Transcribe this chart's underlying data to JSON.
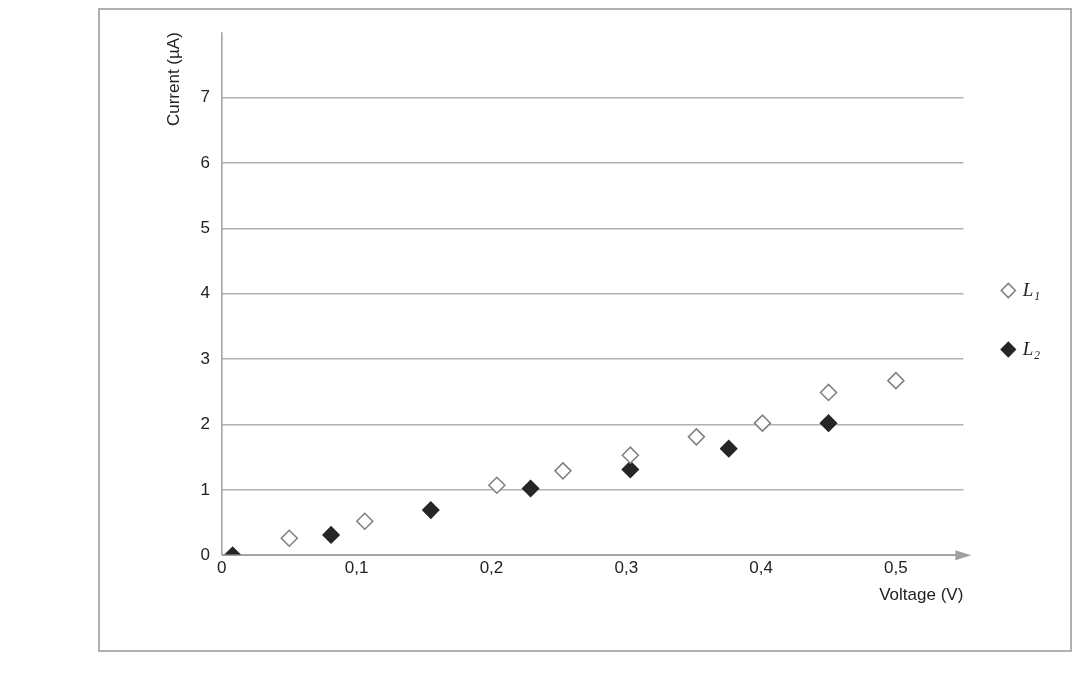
{
  "chart_data": {
    "type": "scatter",
    "xlabel": "Voltage (V)",
    "ylabel": "Current (µA)",
    "xlim": [
      0,
      0.55
    ],
    "ylim": [
      0,
      8
    ],
    "xticks": [
      0,
      {
        "value": 0.1,
        "label": "0,1"
      },
      {
        "value": 0.2,
        "label": "0,2"
      },
      {
        "value": 0.3,
        "label": "0,3"
      },
      {
        "value": 0.4,
        "label": "0,4"
      },
      {
        "value": 0.5,
        "label": "0,5"
      }
    ],
    "yticks": [
      0,
      1,
      2,
      3,
      4,
      5,
      6,
      7
    ],
    "grid": "y",
    "legend": "right",
    "marker": "diamond",
    "series": [
      {
        "name": "L₁",
        "color": "#7f7f7f",
        "x": [
          0.05,
          0.106,
          0.204,
          0.253,
          0.303,
          0.352,
          0.401,
          0.45,
          0.5
        ],
        "values": [
          0.26,
          0.52,
          1.07,
          1.29,
          1.53,
          1.81,
          2.02,
          2.49,
          2.67
        ]
      },
      {
        "name": "L₂",
        "color": "#262626",
        "x": [
          0.008,
          0.081,
          0.155,
          0.229,
          0.303,
          0.376,
          0.45
        ],
        "values": [
          0,
          0.31,
          0.69,
          1.02,
          1.31,
          1.63,
          2.02
        ]
      }
    ]
  }
}
